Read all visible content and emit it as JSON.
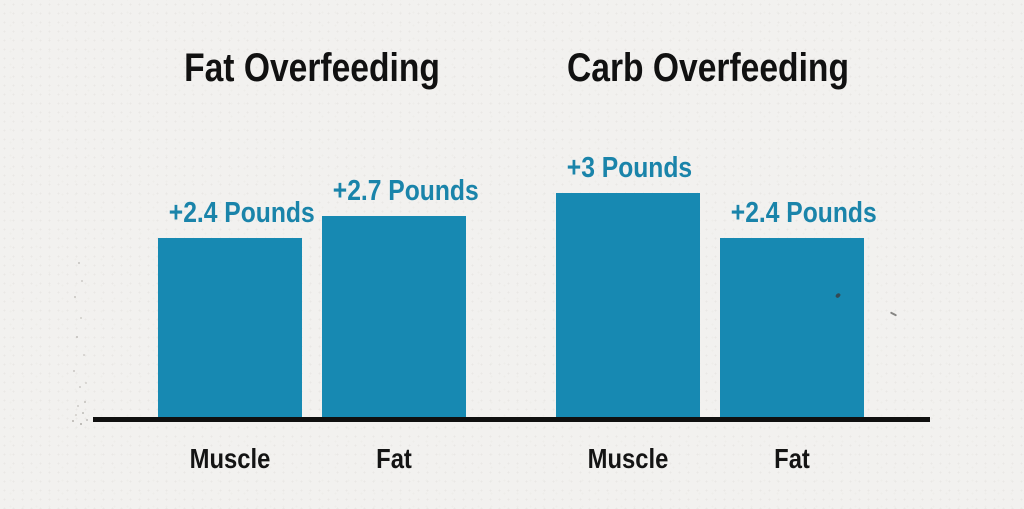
{
  "chart_data": {
    "type": "bar",
    "unit": "Pounds",
    "grid": false,
    "legend": "none",
    "ylim": [
      0,
      3.2
    ],
    "bar_color": "#1789b2",
    "value_label_color": "#1a84aa",
    "title_color": "#111111",
    "axis_color": "#0f0f0f",
    "background": "#f2f1ef",
    "groups": [
      {
        "title": "Fat Overfeeding",
        "bars": [
          {
            "category": "Muscle",
            "value": 2.4,
            "label": "+2.4 Pounds"
          },
          {
            "category": "Fat",
            "value": 2.7,
            "label": "+2.7 Pounds"
          }
        ]
      },
      {
        "title": "Carb Overfeeding",
        "bars": [
          {
            "category": "Muscle",
            "value": 3,
            "label": "+3 Pounds"
          },
          {
            "category": "Fat",
            "value": 2.4,
            "label": "+2.4 Pounds"
          }
        ]
      }
    ]
  }
}
